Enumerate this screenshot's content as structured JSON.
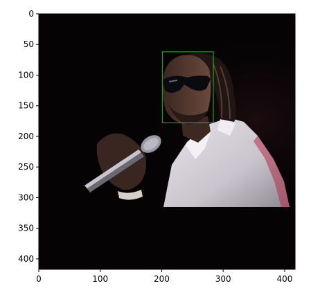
{
  "chart_data": {
    "type": "image",
    "title": "",
    "xlabel": "",
    "ylabel": "",
    "xlim": [
      0,
      417
    ],
    "ylim": [
      417,
      0
    ],
    "xticks": [
      0,
      100,
      200,
      300,
      400
    ],
    "yticks": [
      0,
      50,
      100,
      150,
      200,
      250,
      300,
      350,
      400
    ],
    "image": {
      "description_colors": {
        "background": "#050304",
        "stage_light": "#2a1218"
      },
      "content_rows_end": 314
    },
    "annotations": [
      {
        "type": "rectangle",
        "label": "face-detection-box",
        "x0": 201,
        "y0": 62,
        "x1": 284,
        "y1": 178,
        "color": "#21c021"
      }
    ]
  }
}
